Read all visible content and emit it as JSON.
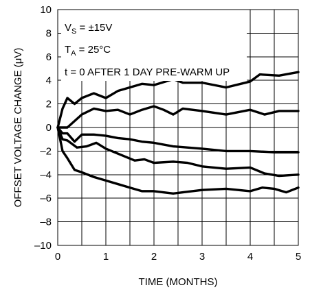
{
  "chart_data": {
    "type": "line",
    "xlabel": "TIME (MONTHS)",
    "ylabel": "OFFSET VOLTAGE CHANGE (μV)",
    "xlim": [
      0,
      5
    ],
    "ylim": [
      -10,
      10
    ],
    "x_ticks": [
      0,
      1,
      2,
      3,
      4,
      5
    ],
    "y_ticks": [
      -10,
      -8,
      -6,
      -4,
      -2,
      0,
      2,
      4,
      6,
      8,
      10
    ],
    "x_tick_labels": [
      "0",
      "1",
      "2",
      "3",
      "4",
      "5"
    ],
    "y_tick_labels": [
      "–10",
      "–8",
      "–6",
      "–4",
      "–2",
      "0",
      "2",
      "4",
      "6",
      "8",
      "10"
    ],
    "grid": true,
    "grid_x_step": 0.5,
    "grid_y_step": 2,
    "annotations": {
      "vs_main": "V",
      "vs_sub": "S",
      "vs_rest": " = ±15V",
      "ta_main": "T",
      "ta_sub": "A",
      "ta_rest": " = 25°C",
      "line3": "t = 0 AFTER 1 DAY PRE-WARM UP"
    },
    "series": [
      {
        "x": [
          0,
          0.1,
          0.2,
          0.35,
          0.5,
          0.75,
          1.0,
          1.25,
          1.5,
          1.75,
          2.0,
          2.4,
          2.6,
          3.0,
          3.5,
          4.0,
          4.2,
          4.6,
          5.0
        ],
        "values": [
          0,
          1.6,
          2.5,
          2.0,
          2.5,
          2.9,
          2.5,
          3.1,
          3.4,
          3.7,
          3.6,
          4.1,
          3.8,
          3.8,
          3.4,
          3.9,
          4.5,
          4.4,
          4.7
        ]
      },
      {
        "x": [
          0,
          0.2,
          0.5,
          0.75,
          1.0,
          1.25,
          1.5,
          1.75,
          2.0,
          2.2,
          2.4,
          2.6,
          3.0,
          3.5,
          4.0,
          4.3,
          4.6,
          5.0
        ],
        "values": [
          0,
          0,
          1.1,
          1.6,
          1.4,
          1.5,
          1.1,
          1.5,
          1.8,
          1.5,
          1.1,
          1.6,
          1.4,
          1.1,
          1.5,
          1.1,
          1.4,
          1.4
        ]
      },
      {
        "x": [
          0,
          0.1,
          0.2,
          0.35,
          0.5,
          0.75,
          1.0,
          1.25,
          1.5,
          1.75,
          2.0,
          2.4,
          3.0,
          3.5,
          4.0,
          4.5,
          5.0
        ],
        "values": [
          0,
          -0.5,
          -0.5,
          -1.2,
          -0.6,
          -0.6,
          -0.7,
          -0.9,
          -1.0,
          -1.2,
          -1.3,
          -1.6,
          -1.8,
          -2.0,
          -2.0,
          -2.1,
          -2.1
        ]
      },
      {
        "x": [
          0,
          0.1,
          0.2,
          0.4,
          0.6,
          0.8,
          1.0,
          1.3,
          1.6,
          1.8,
          2.0,
          2.4,
          2.7,
          3.0,
          3.5,
          4.0,
          4.3,
          4.6,
          5.0
        ],
        "values": [
          0,
          -1.0,
          -1.1,
          -1.7,
          -1.6,
          -1.3,
          -1.8,
          -2.3,
          -2.8,
          -2.7,
          -3.0,
          -2.9,
          -3.0,
          -3.3,
          -3.5,
          -3.4,
          -3.9,
          -4.1,
          -4.0
        ]
      },
      {
        "x": [
          0,
          0.1,
          0.2,
          0.35,
          0.5,
          0.75,
          1.0,
          1.25,
          1.5,
          1.75,
          2.0,
          2.4,
          2.6,
          3.0,
          3.5,
          4.0,
          4.25,
          4.5,
          4.75,
          5.0
        ],
        "values": [
          0,
          -2.0,
          -2.6,
          -3.6,
          -3.8,
          -4.2,
          -4.5,
          -4.8,
          -5.1,
          -5.4,
          -5.4,
          -5.6,
          -5.5,
          -5.3,
          -5.2,
          -5.4,
          -5.1,
          -5.2,
          -5.5,
          -5.1
        ]
      }
    ]
  }
}
